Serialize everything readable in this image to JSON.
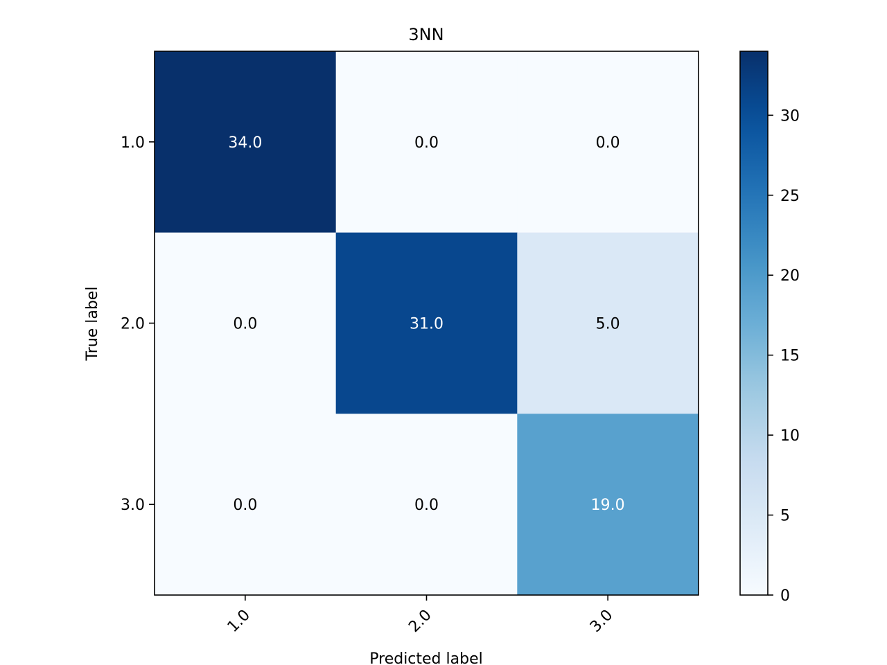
{
  "chart_data": {
    "type": "heatmap",
    "title": "3NN",
    "xlabel": "Predicted label",
    "ylabel": "True label",
    "x_categories": [
      "1.0",
      "2.0",
      "3.0"
    ],
    "y_categories": [
      "1.0",
      "2.0",
      "3.0"
    ],
    "values": [
      [
        34.0,
        0.0,
        0.0
      ],
      [
        0.0,
        31.0,
        5.0
      ],
      [
        0.0,
        0.0,
        19.0
      ]
    ],
    "cell_labels": [
      [
        "34.0",
        "0.0",
        "0.0"
      ],
      [
        "0.0",
        "31.0",
        "5.0"
      ],
      [
        "0.0",
        "0.0",
        "19.0"
      ]
    ],
    "colormap": "Blues",
    "colorbar": {
      "range": [
        0,
        34
      ],
      "ticks": [
        0,
        5,
        10,
        15,
        20,
        25,
        30
      ],
      "tick_labels": [
        "0",
        "5",
        "10",
        "15",
        "20",
        "25",
        "30"
      ]
    },
    "grid": false
  }
}
